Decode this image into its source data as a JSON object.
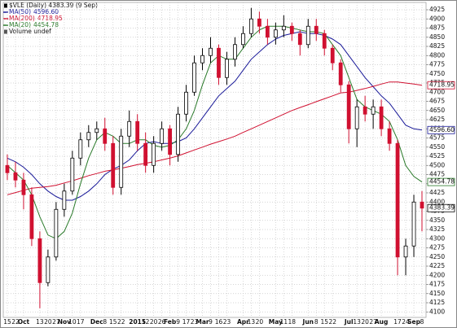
{
  "chart_data": {
    "type": "candlestick",
    "title": "$VLE (Daily) 4383.39 (9 Sep)",
    "categories": [
      "15",
      "22",
      "Oct",
      null,
      "13",
      "20",
      "27",
      "Nov",
      "10",
      "17",
      null,
      "Dec",
      "8",
      "15",
      "22",
      null,
      "2015",
      "12",
      "20",
      "26",
      "Feb",
      "9",
      "17",
      "23",
      "Mar",
      "9",
      "16",
      "23",
      null,
      "Apr",
      "13",
      "20",
      null,
      "May",
      "11",
      "18",
      null,
      "Jun",
      "8",
      "15",
      "22",
      null,
      "Jul",
      "13",
      "20",
      "27",
      "Aug",
      null,
      "17",
      "24",
      "Sep",
      "8"
    ],
    "open": [
      4500,
      4480,
      4460,
      4420,
      4300,
      4180,
      4250,
      4380,
      4430,
      4520,
      4570,
      4590,
      4600,
      4560,
      4440,
      4580,
      4620,
      4560,
      4500,
      4560,
      4600,
      4530,
      4640,
      4700,
      4780,
      4800,
      4820,
      4740,
      4790,
      4830,
      4860,
      4900,
      4880,
      4850,
      4870,
      4880,
      4860,
      4830,
      4880,
      4860,
      4820,
      4780,
      4720,
      4600,
      4660,
      4640,
      4660,
      4600,
      4560,
      4250,
      4280,
      4400
    ],
    "high": [
      4530,
      4510,
      4480,
      4440,
      4320,
      4270,
      4400,
      4450,
      4540,
      4590,
      4610,
      4620,
      4630,
      4580,
      4600,
      4650,
      4640,
      4590,
      4580,
      4620,
      4610,
      4660,
      4720,
      4800,
      4820,
      4850,
      4830,
      4810,
      4850,
      4880,
      4930,
      4920,
      4900,
      4890,
      4910,
      4890,
      4870,
      4900,
      4900,
      4870,
      4830,
      4790,
      4730,
      4680,
      4690,
      4680,
      4680,
      4620,
      4570,
      4300,
      4420,
      4430
    ],
    "low": [
      4460,
      4440,
      4380,
      4280,
      4110,
      4170,
      4240,
      4360,
      4420,
      4500,
      4550,
      4570,
      4540,
      4420,
      4420,
      4550,
      4540,
      4480,
      4480,
      4540,
      4500,
      4510,
      4620,
      4690,
      4760,
      4780,
      4720,
      4720,
      4770,
      4820,
      4850,
      4860,
      4830,
      4830,
      4850,
      4840,
      4800,
      4820,
      4840,
      4800,
      4760,
      4700,
      4560,
      4550,
      4620,
      4600,
      4580,
      4540,
      4200,
      4200,
      4250,
      4320
    ],
    "close": [
      4480,
      4460,
      4420,
      4300,
      4180,
      4250,
      4380,
      4430,
      4520,
      4570,
      4590,
      4600,
      4560,
      4440,
      4580,
      4620,
      4560,
      4500,
      4560,
      4600,
      4530,
      4640,
      4700,
      4780,
      4800,
      4820,
      4740,
      4790,
      4830,
      4860,
      4900,
      4880,
      4850,
      4870,
      4880,
      4860,
      4830,
      4880,
      4860,
      4820,
      4780,
      4720,
      4600,
      4660,
      4640,
      4660,
      4600,
      4560,
      4250,
      4280,
      4400,
      4383.39
    ],
    "last_label": "4383.39",
    "up_color": "#000000",
    "down_color": "#d01030",
    "series": [
      {
        "name": "MA(50)",
        "color": "#1a1a99",
        "last_label": "4596.60",
        "values": [
          4520,
          4510,
          4495,
          4475,
          4450,
          4430,
          4415,
          4405,
          4405,
          4415,
          4430,
          4450,
          4475,
          4490,
          4500,
          4515,
          4540,
          4560,
          4565,
          4560,
          4560,
          4565,
          4575,
          4600,
          4630,
          4660,
          4690,
          4710,
          4730,
          4760,
          4790,
          4810,
          4830,
          4845,
          4855,
          4860,
          4865,
          4860,
          4860,
          4855,
          4845,
          4830,
          4800,
          4770,
          4740,
          4715,
          4690,
          4670,
          4640,
          4610,
          4600,
          4596.6
        ]
      },
      {
        "name": "MA(200)",
        "color": "#d01030",
        "last_label": "4718.95",
        "values": [
          4420,
          4426,
          4432,
          4438,
          4440,
          4442,
          4446,
          4452,
          4458,
          4465,
          4472,
          4478,
          4484,
          4488,
          4492,
          4497,
          4502,
          4506,
          4510,
          4515,
          4520,
          4526,
          4534,
          4542,
          4550,
          4558,
          4565,
          4572,
          4580,
          4590,
          4600,
          4610,
          4620,
          4630,
          4640,
          4650,
          4658,
          4666,
          4674,
          4682,
          4690,
          4698,
          4700,
          4705,
          4710,
          4716,
          4722,
          4728,
          4728,
          4725,
          4722,
          4718.95
        ]
      },
      {
        "name": "MA(20)",
        "color": "#2a7a2a",
        "last_label": "4454.78",
        "values": [
          4500,
          4480,
          4460,
          4420,
          4360,
          4310,
          4300,
          4320,
          4370,
          4450,
          4520,
          4570,
          4590,
          4580,
          4560,
          4560,
          4570,
          4570,
          4555,
          4550,
          4555,
          4570,
          4600,
          4650,
          4720,
          4780,
          4800,
          4790,
          4790,
          4820,
          4850,
          4870,
          4880,
          4880,
          4880,
          4875,
          4870,
          4865,
          4865,
          4860,
          4830,
          4800,
          4740,
          4680,
          4660,
          4650,
          4640,
          4620,
          4570,
          4500,
          4470,
          4454.78
        ]
      }
    ],
    "volume_label": "Volume undef",
    "ylim": [
      4085,
      4945
    ],
    "yticks": [
      4100,
      4125,
      4150,
      4175,
      4200,
      4225,
      4250,
      4275,
      4300,
      4325,
      4350,
      4375,
      4400,
      4425,
      4450,
      4475,
      4500,
      4525,
      4550,
      4575,
      4600,
      4625,
      4650,
      4675,
      4700,
      4725,
      4750,
      4775,
      4800,
      4825,
      4850,
      4875,
      4900,
      4925
    ],
    "grid": true
  }
}
